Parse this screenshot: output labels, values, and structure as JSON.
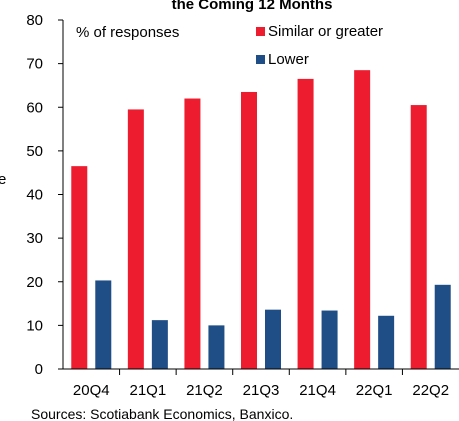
{
  "chart_data": {
    "type": "bar",
    "title": "the Coming 12 Months",
    "ylabel_fragment": "e",
    "annotation": "% of responses",
    "categories": [
      "20Q4",
      "21Q1",
      "21Q2",
      "21Q3",
      "21Q4",
      "22Q1",
      "22Q2"
    ],
    "ylim": [
      0,
      80
    ],
    "yticks": [
      0,
      10,
      20,
      30,
      40,
      50,
      60,
      70,
      80
    ],
    "grid": false,
    "legend_position": "top-right",
    "series": [
      {
        "name": "Similar or greater",
        "color": "#ed1c2e",
        "values": [
          46.5,
          59.5,
          62,
          63.5,
          66.5,
          68.5,
          60.5
        ]
      },
      {
        "name": "Lower",
        "color": "#1f4e86",
        "values": [
          20.3,
          11.2,
          10.0,
          13.6,
          13.4,
          12.2,
          19.3
        ]
      }
    ],
    "source": "Sources: Scotiabank Economics, Banxico."
  }
}
